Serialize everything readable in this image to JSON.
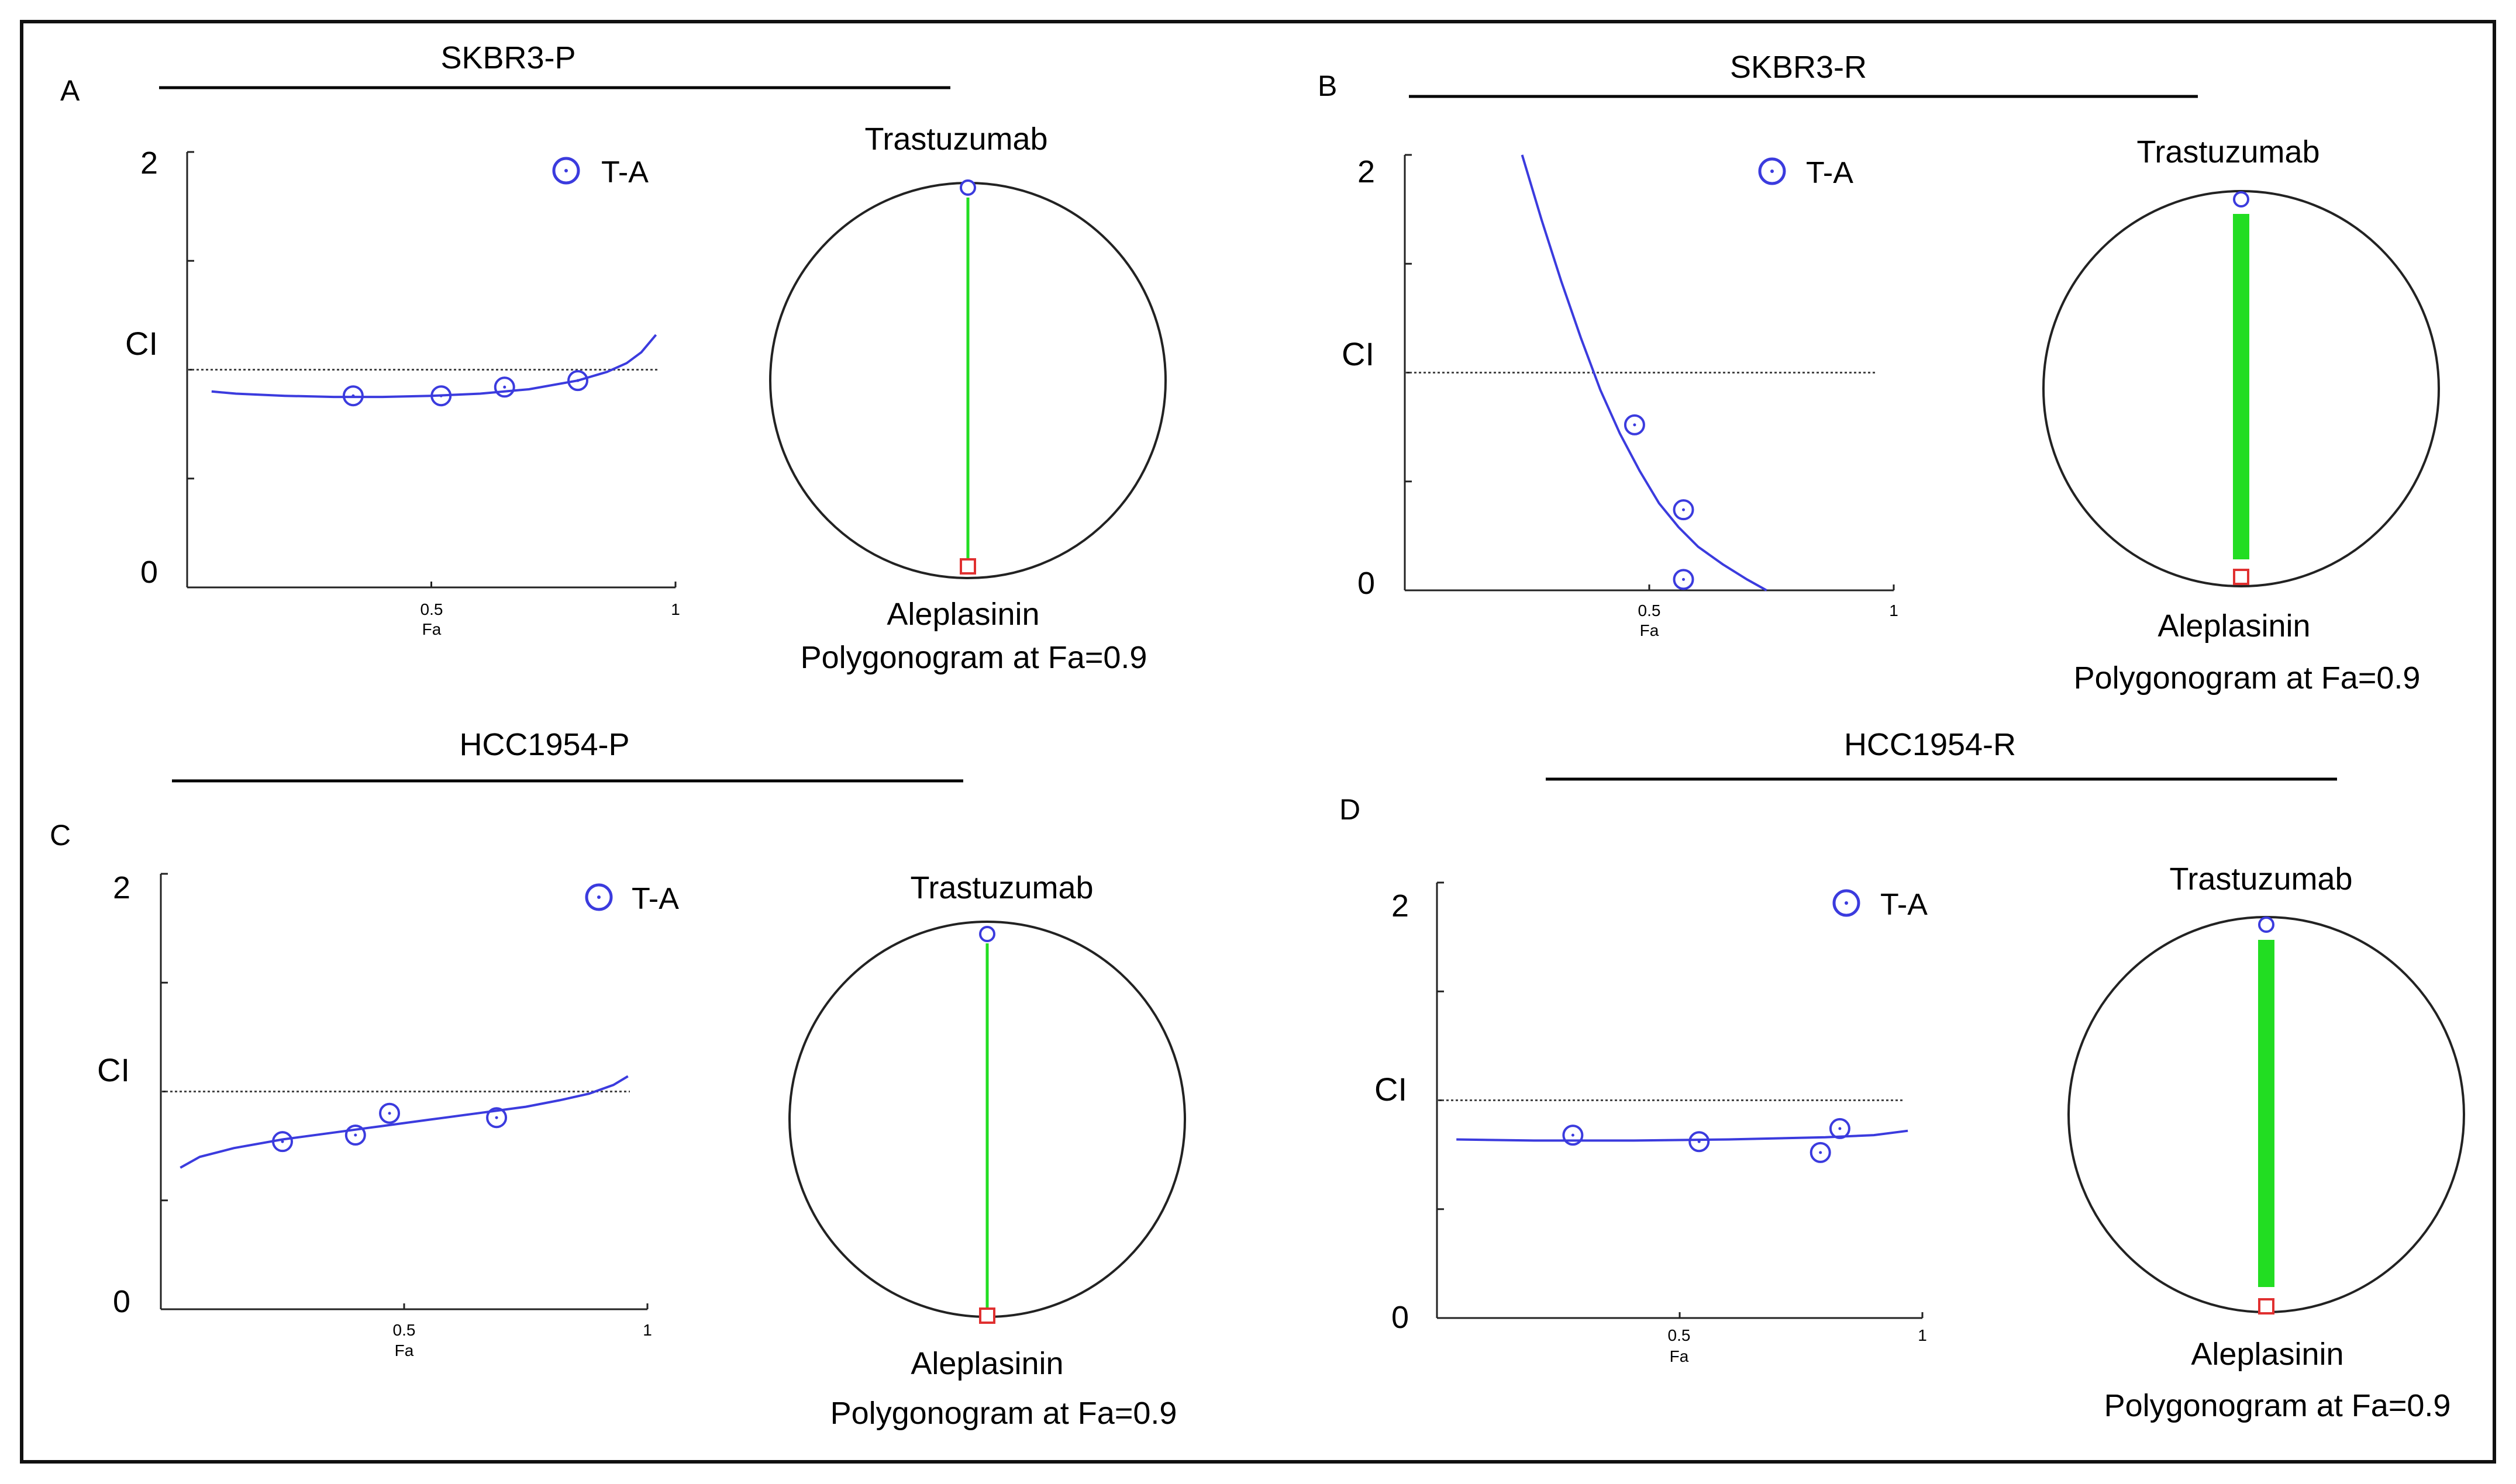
{
  "colors": {
    "curve": "#3b3bde",
    "point": "#3b3bde",
    "axis": "#222222",
    "reference": "#444444",
    "synergy_line": "#22dd22",
    "aleplasinin_marker": "#e03030",
    "trastuzumab_marker": "#3b3bde",
    "border": "#111111"
  },
  "chart_data": [
    {
      "panel": "A",
      "type": "scatter",
      "title": "SKBR3-P",
      "ylabel": "CI",
      "xlabel": "Fa",
      "xlim": [
        0,
        1
      ],
      "ylim": [
        0,
        2
      ],
      "ytick_labels": [
        "2",
        "0"
      ],
      "xtick_labels": [
        "0.5",
        "1"
      ],
      "reference_ci": 1.0,
      "series": [
        {
          "name": "T-A",
          "points": [
            {
              "x": 0.34,
              "y": 0.88
            },
            {
              "x": 0.52,
              "y": 0.88
            },
            {
              "x": 0.65,
              "y": 0.92
            },
            {
              "x": 0.8,
              "y": 0.95
            }
          ],
          "curve": [
            {
              "x": 0.05,
              "y": 0.9
            },
            {
              "x": 0.1,
              "y": 0.89
            },
            {
              "x": 0.2,
              "y": 0.88
            },
            {
              "x": 0.3,
              "y": 0.875
            },
            {
              "x": 0.4,
              "y": 0.875
            },
            {
              "x": 0.5,
              "y": 0.88
            },
            {
              "x": 0.6,
              "y": 0.89
            },
            {
              "x": 0.7,
              "y": 0.91
            },
            {
              "x": 0.8,
              "y": 0.95
            },
            {
              "x": 0.86,
              "y": 0.99
            },
            {
              "x": 0.9,
              "y": 1.03
            },
            {
              "x": 0.93,
              "y": 1.08
            },
            {
              "x": 0.96,
              "y": 1.16
            }
          ]
        }
      ],
      "polygonogram": {
        "top_drug": "Trastuzumab",
        "bottom_drug": "Aleplasinin",
        "caption": "Polygonogram at Fa=0.9",
        "line": "thin"
      }
    },
    {
      "panel": "B",
      "type": "scatter",
      "title": "SKBR3-R",
      "ylabel": "CI",
      "xlabel": "Fa",
      "xlim": [
        0,
        1
      ],
      "ylim": [
        0,
        2
      ],
      "ytick_labels": [
        "2",
        "0"
      ],
      "xtick_labels": [
        "0.5",
        "1"
      ],
      "reference_ci": 1.0,
      "series": [
        {
          "name": "T-A",
          "points": [
            {
              "x": 0.47,
              "y": 0.76
            },
            {
              "x": 0.57,
              "y": 0.37
            },
            {
              "x": 0.57,
              "y": 0.05
            }
          ],
          "curve": [
            {
              "x": 0.24,
              "y": 2.0
            },
            {
              "x": 0.28,
              "y": 1.7
            },
            {
              "x": 0.32,
              "y": 1.42
            },
            {
              "x": 0.36,
              "y": 1.16
            },
            {
              "x": 0.4,
              "y": 0.92
            },
            {
              "x": 0.44,
              "y": 0.72
            },
            {
              "x": 0.48,
              "y": 0.55
            },
            {
              "x": 0.52,
              "y": 0.4
            },
            {
              "x": 0.56,
              "y": 0.29
            },
            {
              "x": 0.6,
              "y": 0.2
            },
            {
              "x": 0.65,
              "y": 0.12
            },
            {
              "x": 0.7,
              "y": 0.05
            },
            {
              "x": 0.74,
              "y": 0.0
            }
          ]
        }
      ],
      "polygonogram": {
        "top_drug": "Trastuzumab",
        "bottom_drug": "Aleplasinin",
        "caption": "Polygonogram at Fa=0.9",
        "line": "thick"
      }
    },
    {
      "panel": "C",
      "type": "scatter",
      "title": "HCC1954-P",
      "ylabel": "CI",
      "xlabel": "Fa",
      "xlim": [
        0,
        1
      ],
      "ylim": [
        0,
        2
      ],
      "ytick_labels": [
        "2",
        "0"
      ],
      "xtick_labels": [
        "0.5",
        "1"
      ],
      "reference_ci": 1.0,
      "series": [
        {
          "name": "T-A",
          "points": [
            {
              "x": 0.25,
              "y": 0.77
            },
            {
              "x": 0.4,
              "y": 0.8
            },
            {
              "x": 0.47,
              "y": 0.9
            },
            {
              "x": 0.69,
              "y": 0.88
            }
          ],
          "curve": [
            {
              "x": 0.04,
              "y": 0.65
            },
            {
              "x": 0.08,
              "y": 0.7
            },
            {
              "x": 0.15,
              "y": 0.74
            },
            {
              "x": 0.25,
              "y": 0.78
            },
            {
              "x": 0.35,
              "y": 0.81
            },
            {
              "x": 0.45,
              "y": 0.84
            },
            {
              "x": 0.55,
              "y": 0.87
            },
            {
              "x": 0.65,
              "y": 0.9
            },
            {
              "x": 0.75,
              "y": 0.93
            },
            {
              "x": 0.82,
              "y": 0.96
            },
            {
              "x": 0.88,
              "y": 0.99
            },
            {
              "x": 0.93,
              "y": 1.03
            },
            {
              "x": 0.96,
              "y": 1.07
            }
          ]
        }
      ],
      "polygonogram": {
        "top_drug": "Trastuzumab",
        "bottom_drug": "Aleplasinin",
        "caption": "Polygonogram at Fa=0.9",
        "line": "thin"
      }
    },
    {
      "panel": "D",
      "type": "scatter",
      "title": "HCC1954-R",
      "ylabel": "CI",
      "xlabel": "Fa",
      "xlim": [
        0,
        1
      ],
      "ylim": [
        0,
        2
      ],
      "ytick_labels": [
        "2",
        "0"
      ],
      "xtick_labels": [
        "0.5",
        "1"
      ],
      "reference_ci": 1.0,
      "series": [
        {
          "name": "T-A",
          "points": [
            {
              "x": 0.28,
              "y": 0.84
            },
            {
              "x": 0.54,
              "y": 0.81
            },
            {
              "x": 0.79,
              "y": 0.76
            },
            {
              "x": 0.83,
              "y": 0.87
            }
          ],
          "curve": [
            {
              "x": 0.04,
              "y": 0.82
            },
            {
              "x": 0.2,
              "y": 0.815
            },
            {
              "x": 0.4,
              "y": 0.815
            },
            {
              "x": 0.6,
              "y": 0.82
            },
            {
              "x": 0.8,
              "y": 0.83
            },
            {
              "x": 0.9,
              "y": 0.84
            },
            {
              "x": 0.97,
              "y": 0.86
            }
          ]
        }
      ],
      "polygonogram": {
        "top_drug": "Trastuzumab",
        "bottom_drug": "Aleplasinin",
        "caption": "Polygonogram at Fa=0.9",
        "line": "thick"
      }
    }
  ]
}
